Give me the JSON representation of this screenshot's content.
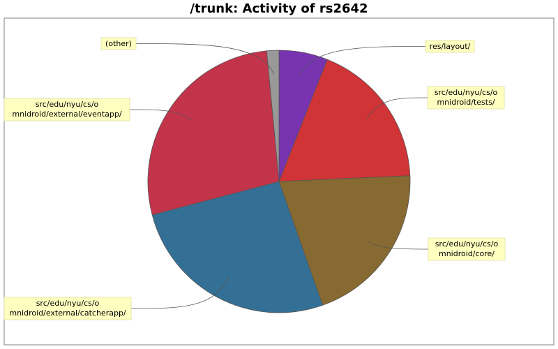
{
  "chart_data": {
    "type": "pie",
    "title": "/trunk: Activity of rs2642",
    "start_angle_deg": 90,
    "direction": "clockwise",
    "slices": [
      {
        "label": "res/layout/",
        "value": 6.0,
        "color": "#7733b0"
      },
      {
        "label": "src/edu/nyu/cs/omnidroid/tests/",
        "value": 18.3,
        "color": "#d03436"
      },
      {
        "label": "src/edu/nyu/cs/omnidroid/core/",
        "value": 20.3,
        "color": "#876a31"
      },
      {
        "label": "src/edu/nyu/cs/omnidroid/external/catcherapp/",
        "value": 26.3,
        "color": "#347096"
      },
      {
        "label": "src/edu/nyu/cs/omnidroid/external/eventapp/",
        "value": 27.6,
        "color": "#c3344b"
      },
      {
        "label": "(other)",
        "value": 1.5,
        "color": "#999999"
      }
    ],
    "label_lines": [
      [
        "res/layout/"
      ],
      [
        "src/edu/nyu/cs/o",
        "mnidroid/tests/"
      ],
      [
        "src/edu/nyu/cs/o",
        "mnidroid/core/"
      ],
      [
        "src/edu/nyu/cs/o",
        "mnidroid/external/catcherapp/"
      ],
      [
        "src/edu/nyu/cs/o",
        "mnidroid/external/eventapp/"
      ],
      [
        "(other)"
      ]
    ],
    "legend": "none",
    "label_box_color": "#ffffc0"
  }
}
